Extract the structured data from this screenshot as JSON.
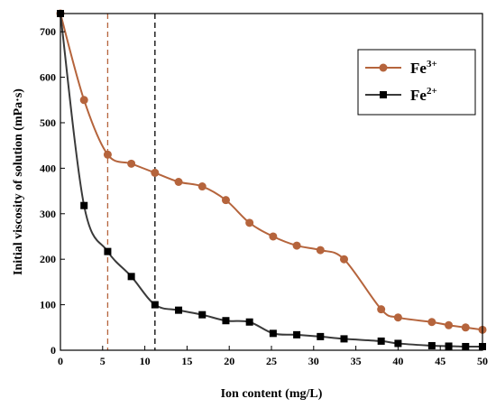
{
  "chart_data": {
    "type": "line",
    "title": "",
    "xlabel": "Ion content (mg/L)",
    "ylabel": "Initial viscosity of solution (mPa·s)",
    "xlim": [
      0,
      50
    ],
    "ylim": [
      0,
      740
    ],
    "xticks": [
      0,
      5,
      10,
      15,
      20,
      25,
      30,
      35,
      40,
      45,
      50
    ],
    "yticks": [
      0,
      100,
      200,
      300,
      400,
      500,
      600,
      700
    ],
    "grid": false,
    "legend_position": "top-right",
    "reference_lines_x": [
      {
        "x": 5.6,
        "color": "#b5643c"
      },
      {
        "x": 11.2,
        "color": "#000000"
      }
    ],
    "series": [
      {
        "name": "Fe",
        "name_sup": "3+",
        "color": "#b5643c",
        "marker": "circle",
        "x": [
          0,
          2.8,
          5.6,
          8.4,
          11.2,
          14.0,
          16.8,
          19.6,
          22.4,
          25.2,
          28.0,
          30.8,
          33.6,
          38.0,
          40.0,
          44.0,
          46.0,
          48.0,
          50.0
        ],
        "y": [
          740,
          550,
          430,
          410,
          390,
          370,
          360,
          330,
          280,
          250,
          230,
          220,
          200,
          90,
          72,
          62,
          55,
          50,
          45
        ]
      },
      {
        "name": "Fe",
        "name_sup": "2+",
        "color": "#3a3a3a",
        "marker": "square",
        "x": [
          0,
          2.8,
          5.6,
          8.4,
          11.2,
          14.0,
          16.8,
          19.6,
          22.4,
          25.2,
          28.0,
          30.8,
          33.6,
          38.0,
          40.0,
          44.0,
          46.0,
          48.0,
          50.0
        ],
        "y": [
          740,
          318,
          217,
          162,
          100,
          88,
          78,
          65,
          62,
          37,
          34,
          30,
          25,
          20,
          15,
          10,
          9,
          8,
          8
        ]
      }
    ]
  }
}
